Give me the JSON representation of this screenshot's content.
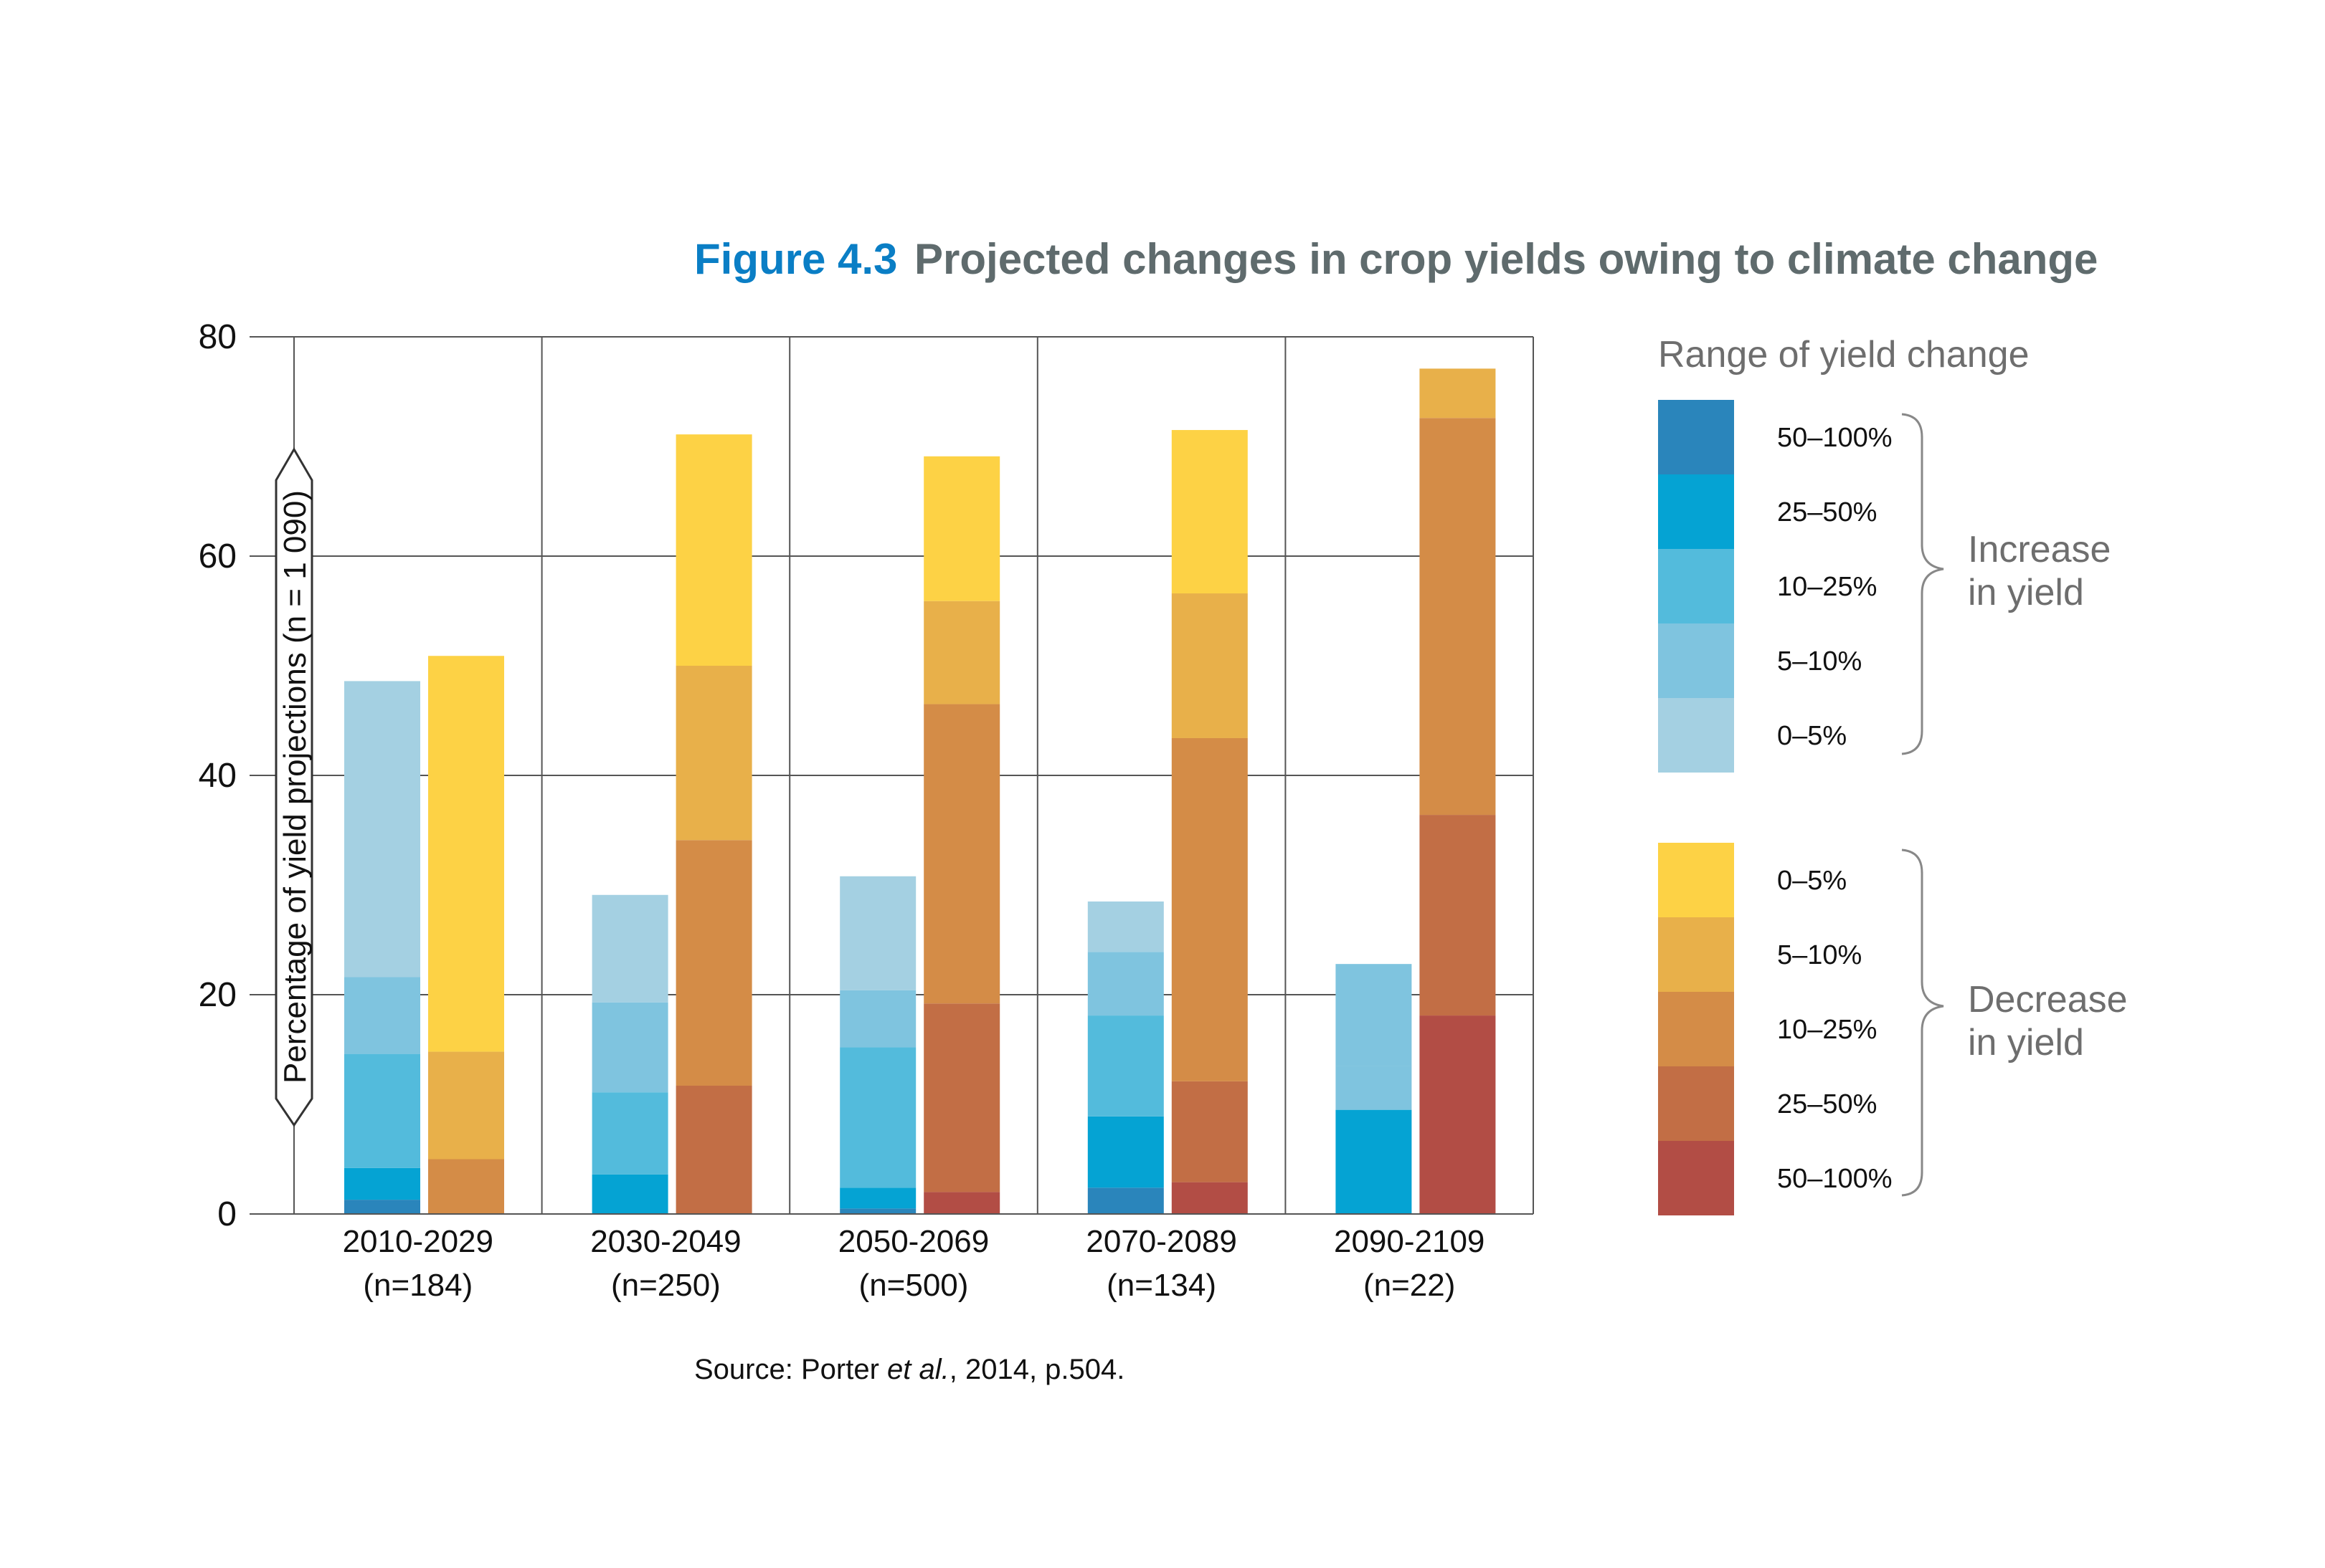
{
  "header": {
    "figure_number": "Figure 4.3",
    "title": "Projected changes in crop yields owing to climate change"
  },
  "source": {
    "prefix": "Source: Porter ",
    "italic": "et al.",
    "suffix": ", 2014, p.504."
  },
  "legend": {
    "title": "Range of yield change",
    "increase_label_line1": "Increase",
    "increase_label_line2": "in yield",
    "decrease_label_line1": "Decrease",
    "decrease_label_line2": "in yield",
    "increase_items": [
      {
        "label": "50–100%",
        "color": "#2a85bb"
      },
      {
        "label": "25–50%",
        "color": "#05a3d3"
      },
      {
        "label": "10–25%",
        "color": "#53bbdc"
      },
      {
        "label": "5–10%",
        "color": "#7fc4df"
      },
      {
        "label": "0–5%",
        "color": "#a4d0e2"
      }
    ],
    "decrease_items": [
      {
        "label": "0–5%",
        "color": "#fdd245"
      },
      {
        "label": "5–10%",
        "color": "#e8b04a"
      },
      {
        "label": "10–25%",
        "color": "#d48c47"
      },
      {
        "label": "25–50%",
        "color": "#c26e45"
      },
      {
        "label": "50–100%",
        "color": "#b24d45"
      }
    ]
  },
  "chart_data": {
    "type": "bar",
    "stacked": true,
    "title": "Projected changes in crop yields owing to climate change",
    "ylabel": "Percentage of yield projections (n = 1 090)",
    "ylim": [
      0,
      80
    ],
    "yticks": [
      0,
      20,
      40,
      60,
      80
    ],
    "grid": true,
    "categories": [
      {
        "period": "2010-2029",
        "n": "(n=184)"
      },
      {
        "period": "2030-2049",
        "n": "(n=250)"
      },
      {
        "period": "2050-2069",
        "n": "(n=500)"
      },
      {
        "period": "2070-2089",
        "n": "(n=134)"
      },
      {
        "period": "2090-2109",
        "n": "(n=22)"
      }
    ],
    "increase_series": [
      {
        "name": "50–100%",
        "color": "#2a85bb",
        "values": [
          1.3,
          0,
          0.5,
          2.4,
          0
        ]
      },
      {
        "name": "25–50%",
        "color": "#05a3d3",
        "values": [
          2.9,
          3.6,
          1.9,
          6.5,
          9.5
        ]
      },
      {
        "name": "10–25%",
        "color": "#53bbdc",
        "values": [
          10.4,
          7.5,
          12.8,
          9.2,
          0
        ]
      },
      {
        "name": "5–10%",
        "color": "#7fc4df",
        "values": [
          7.0,
          8.2,
          5.2,
          5.8,
          4.0
        ]
      },
      {
        "name": "0–5%",
        "color": "#a4d0e2",
        "values": [
          27.0,
          9.8,
          10.4,
          4.6,
          0
        ]
      }
    ],
    "increase_tail_series": [
      {
        "name": "5–10%",
        "color": "#7fc4df",
        "values": [
          0,
          0,
          0,
          0,
          9.3
        ]
      }
    ],
    "decrease_series": [
      {
        "name": "50–100%",
        "color": "#b24d45",
        "values": [
          0,
          0,
          2.0,
          2.9,
          18.1
        ]
      },
      {
        "name": "25–50%",
        "color": "#c26e45",
        "values": [
          0,
          11.7,
          17.2,
          9.2,
          18.3
        ]
      },
      {
        "name": "10–25%",
        "color": "#d48c47",
        "values": [
          5.0,
          22.4,
          27.3,
          31.3,
          36.2
        ]
      },
      {
        "name": "5–10%",
        "color": "#e8b04a",
        "values": [
          9.8,
          15.9,
          9.4,
          13.2,
          4.5
        ]
      },
      {
        "name": "0–5%",
        "color": "#fdd245",
        "values": [
          36.1,
          21.1,
          13.2,
          14.9,
          0
        ]
      }
    ]
  }
}
